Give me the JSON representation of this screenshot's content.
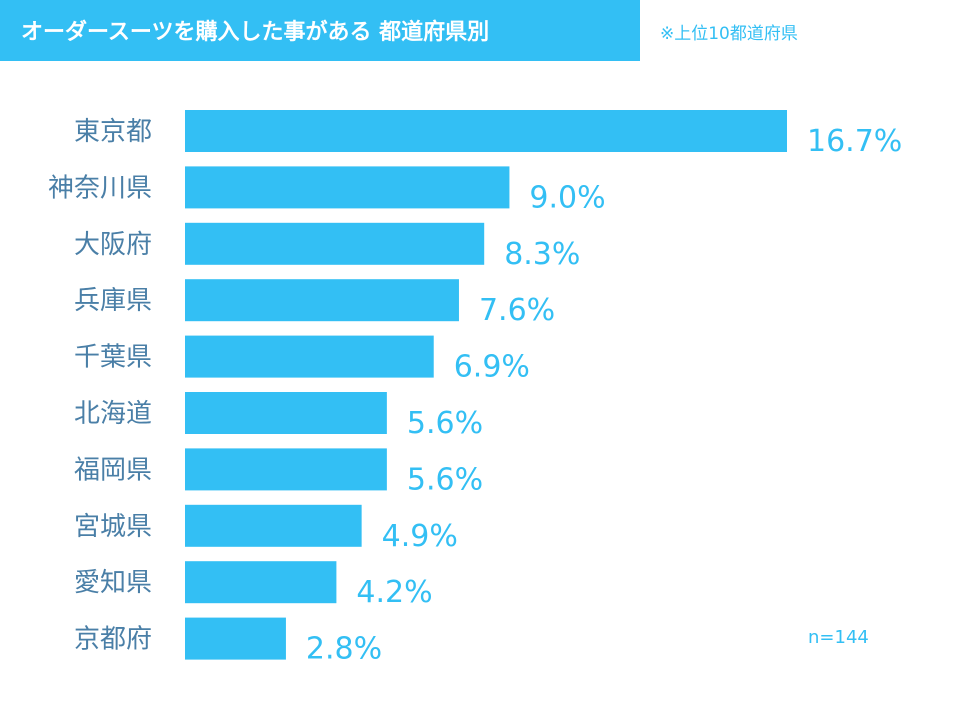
{
  "header": {
    "title": "オーダースーツを購入した事がある 都道府県別",
    "note": "※上位10都道府県"
  },
  "colors": {
    "accent": "#33bff4",
    "label_text": "#4a7fa7",
    "value_text": "#33bff4"
  },
  "sample_size": "n=144",
  "chart_data": {
    "type": "bar",
    "orientation": "horizontal",
    "title": "オーダースーツを購入した事がある 都道府県別",
    "categories": [
      "東京都",
      "神奈川県",
      "大阪府",
      "兵庫県",
      "千葉県",
      "北海道",
      "福岡県",
      "宮城県",
      "愛知県",
      "京都府"
    ],
    "values": [
      16.7,
      9.0,
      8.3,
      7.6,
      6.9,
      5.6,
      5.6,
      4.9,
      4.2,
      2.8
    ],
    "value_labels": [
      "16.7%",
      "9.0%",
      "8.3%",
      "7.6%",
      "6.9%",
      "5.6%",
      "5.6%",
      "4.9%",
      "4.2%",
      "2.8%"
    ],
    "unit": "%",
    "xlim": [
      0,
      16.7
    ],
    "grid": false,
    "legend": "none"
  }
}
